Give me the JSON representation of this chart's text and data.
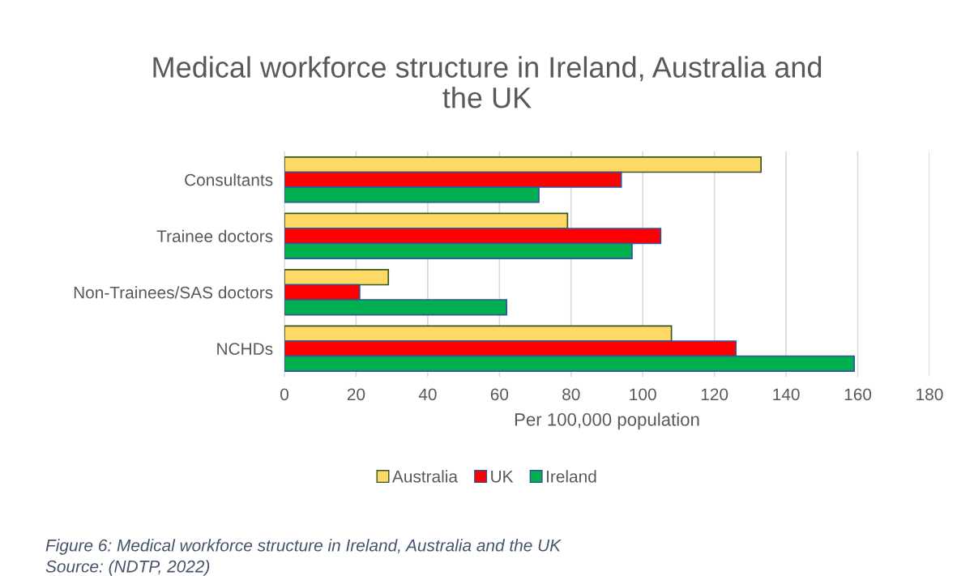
{
  "chart_data": {
    "type": "bar",
    "orientation": "horizontal",
    "title": "Medical workforce structure in Ireland, Australia and\nthe UK",
    "xlabel": "Per 100,000 population",
    "categories": [
      "Consultants",
      "Trainee doctors",
      "Non-Trainees/SAS doctors",
      "NCHDs"
    ],
    "series": [
      {
        "name": "Australia",
        "color": "#ffd966",
        "values": [
          133,
          79,
          29,
          108
        ]
      },
      {
        "name": "UK",
        "color": "#ff0000",
        "values": [
          94,
          105,
          21,
          126
        ]
      },
      {
        "name": "Ireland",
        "color": "#00b050",
        "values": [
          71,
          97,
          62,
          159
        ]
      }
    ],
    "xlim": [
      0,
      180
    ],
    "xticks": [
      0,
      20,
      40,
      60,
      80,
      100,
      120,
      140,
      160,
      180
    ],
    "grid": "x",
    "legend": "bottom",
    "annotations": [
      "Figure 6: Medical workforce structure in Ireland, Australia and the UK",
      "Source: (NDTP, 2022)"
    ]
  }
}
